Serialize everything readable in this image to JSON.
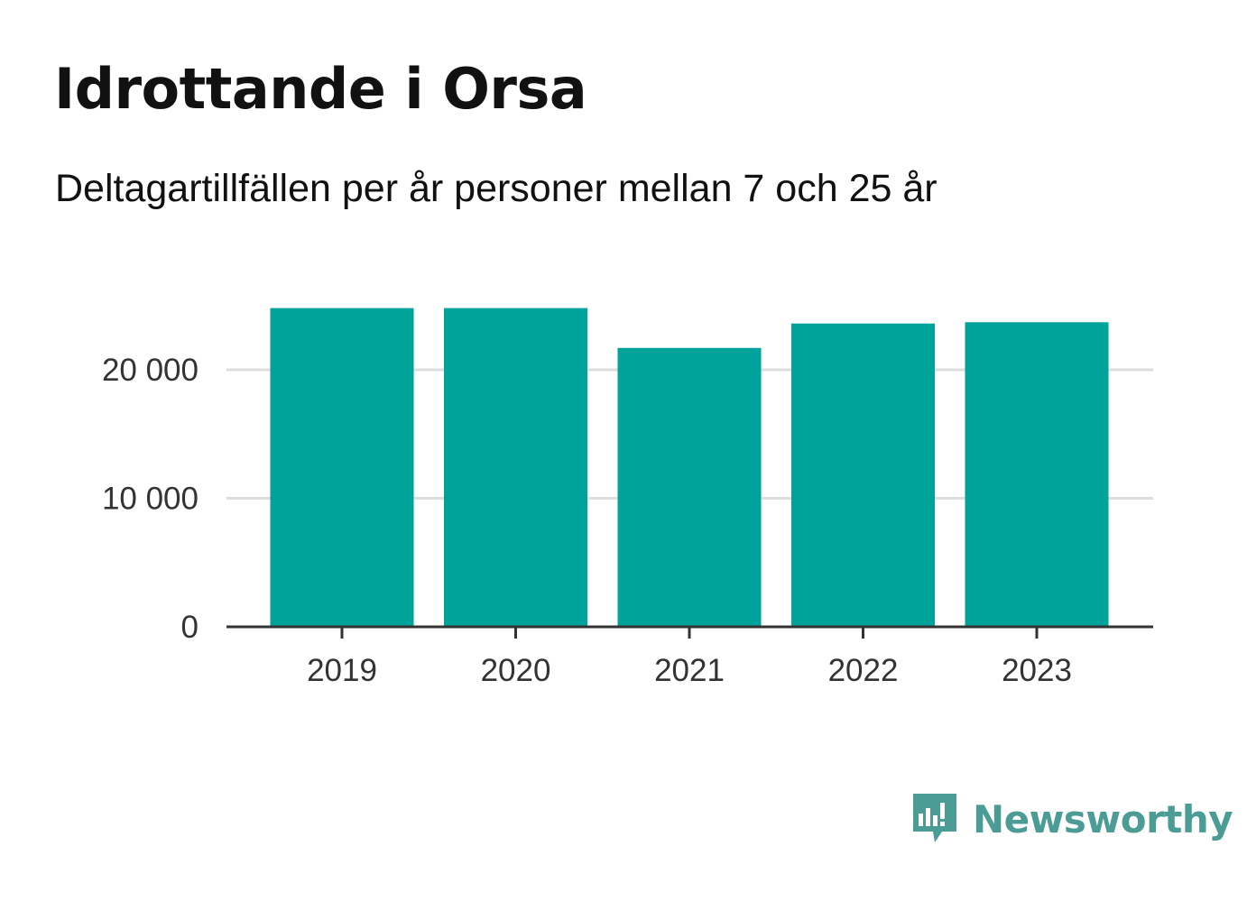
{
  "title": "Idrottande i Orsa",
  "subtitle": "Deltagartillfällen per år personer mellan 7 och 25 år",
  "brand": {
    "name": "Newsworthy",
    "color": "#4a9c94",
    "icon": "newsworthy-logo-icon"
  },
  "colors": {
    "bar": "#00a39a",
    "grid": "#dddddd",
    "axis": "#333333"
  },
  "chart_data": {
    "type": "bar",
    "title": "Idrottande i Orsa",
    "subtitle": "Deltagartillfällen per år personer mellan 7 och 25 år",
    "categories": [
      "2019",
      "2020",
      "2021",
      "2022",
      "2023"
    ],
    "values": [
      24800,
      24800,
      21700,
      23600,
      23700
    ],
    "ylim": [
      0,
      27000
    ],
    "yticks": [
      0,
      10000,
      20000
    ],
    "ytick_labels": [
      "0",
      "10 000",
      "20 000"
    ],
    "grid": true,
    "legend": "none"
  }
}
